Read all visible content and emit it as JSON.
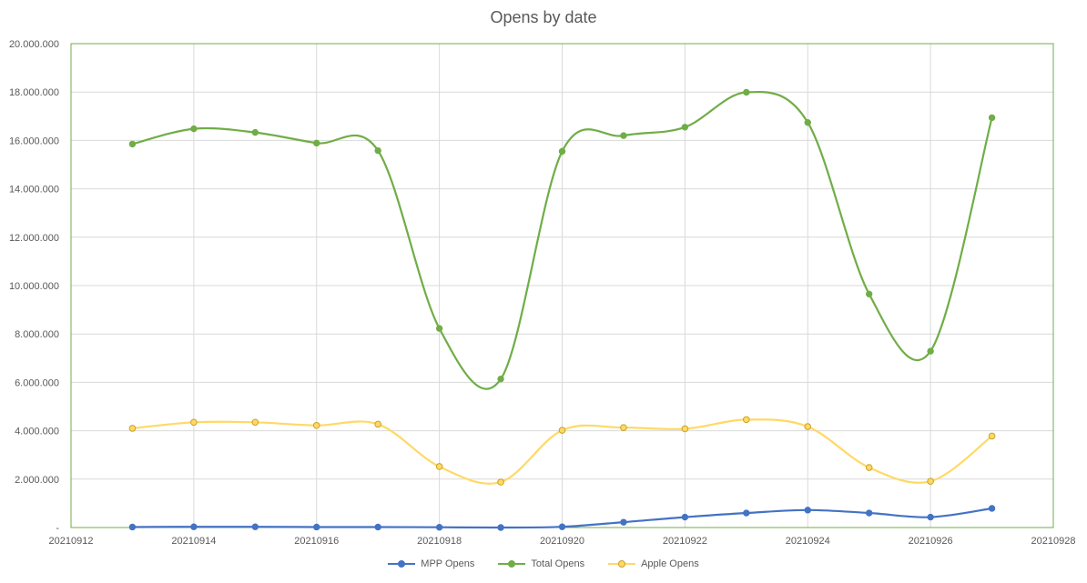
{
  "chart_data": {
    "type": "line",
    "title": "Opens by date",
    "xlim": [
      20210912,
      20210928
    ],
    "x_ticks": [
      "20210912",
      "20210914",
      "20210916",
      "20210918",
      "20210920",
      "20210922",
      "20210924",
      "20210926",
      "20210928"
    ],
    "ylim": [
      0,
      20000000
    ],
    "y_ticks": [
      "-",
      "2.000.000",
      "4.000.000",
      "6.000.000",
      "8.000.000",
      "10.000.000",
      "12.000.000",
      "14.000.000",
      "16.000.000",
      "18.000.000",
      "20.000.000"
    ],
    "x": [
      20210913,
      20210914,
      20210915,
      20210916,
      20210917,
      20210918,
      20210919,
      20210920,
      20210921,
      20210922,
      20210923,
      20210924,
      20210925,
      20210926,
      20210927
    ],
    "series": [
      {
        "name": "MPP Opens",
        "color": "#4472C4",
        "values": [
          20000,
          30000,
          30000,
          20000,
          20000,
          10000,
          0,
          30000,
          220000,
          430000,
          600000,
          720000,
          600000,
          430000,
          790000
        ]
      },
      {
        "name": "Total Opens",
        "color": "#70AD47",
        "values": [
          15850000,
          16480000,
          16330000,
          15890000,
          15580000,
          8230000,
          6140000,
          15550000,
          16200000,
          16550000,
          17990000,
          16740000,
          9650000,
          7290000,
          16940000
        ]
      },
      {
        "name": "Apple Opens",
        "color": "#FFD966",
        "values": [
          4100000,
          4350000,
          4350000,
          4220000,
          4270000,
          2520000,
          1880000,
          4020000,
          4130000,
          4080000,
          4460000,
          4170000,
          2480000,
          1910000,
          3780000
        ]
      }
    ],
    "grid": true,
    "legend_position": "bottom"
  }
}
